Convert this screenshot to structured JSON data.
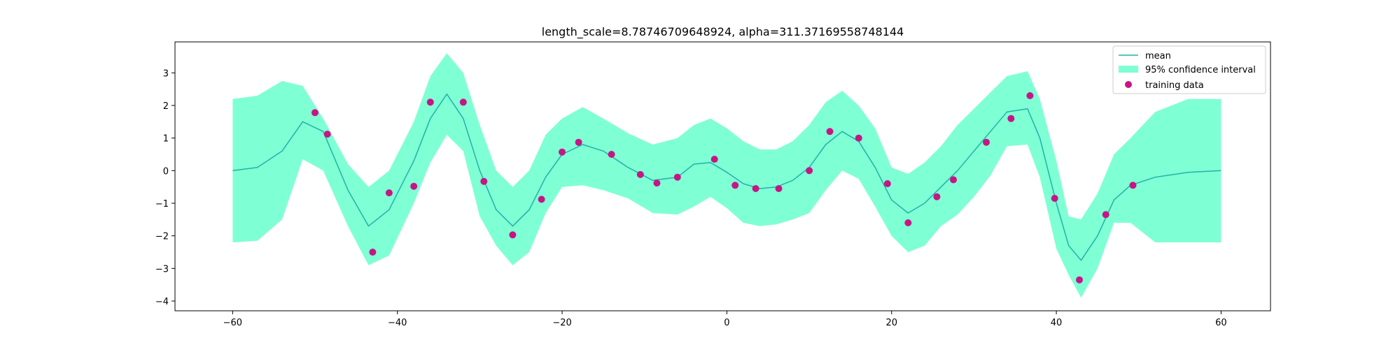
{
  "chart_data": {
    "type": "line",
    "title": "length_scale=8.78746709648924, alpha=311.37169558748144",
    "xlabel": "",
    "ylabel": "",
    "xlim": [
      -67,
      66
    ],
    "ylim": [
      -4.3,
      3.95
    ],
    "xticks": [
      -60,
      -40,
      -20,
      0,
      20,
      40,
      60
    ],
    "yticks": [
      -4,
      -3,
      -2,
      -1,
      0,
      1,
      2,
      3
    ],
    "grid": false,
    "legend_position": "top-right",
    "colors": {
      "mean": "#20b2aa",
      "confidence": "#7fffd4",
      "training": "#c71585"
    },
    "legend": {
      "mean": "mean",
      "confidence": "95% confidence interval",
      "training": "training data"
    },
    "mean": {
      "x": [
        -60,
        -57,
        -54,
        -51.5,
        -49,
        -46,
        -43.5,
        -41,
        -38,
        -36,
        -34,
        -32,
        -30,
        -28,
        -26,
        -24,
        -22,
        -20,
        -17.5,
        -15,
        -12,
        -9,
        -6,
        -4,
        -2,
        0,
        2,
        4,
        6,
        8,
        10,
        12,
        14,
        16,
        18,
        20,
        22,
        24,
        26,
        28,
        30,
        32,
        34,
        36.5,
        38,
        40,
        41.5,
        43,
        45,
        47,
        49,
        52,
        56,
        60
      ],
      "y": [
        0.0,
        0.1,
        0.6,
        1.5,
        1.2,
        -0.6,
        -1.7,
        -1.2,
        0.3,
        1.6,
        2.35,
        1.6,
        0.0,
        -1.2,
        -1.7,
        -1.2,
        -0.2,
        0.5,
        0.8,
        0.6,
        0.1,
        -0.3,
        -0.2,
        0.2,
        0.25,
        -0.05,
        -0.4,
        -0.55,
        -0.5,
        -0.3,
        0.1,
        0.8,
        1.2,
        0.9,
        0.1,
        -0.9,
        -1.3,
        -1.0,
        -0.5,
        0.0,
        0.6,
        1.2,
        1.8,
        1.9,
        1.0,
        -1.0,
        -2.3,
        -2.75,
        -2.0,
        -0.9,
        -0.45,
        -0.2,
        -0.05,
        0.0
      ]
    },
    "confidence_interval": {
      "upper": [
        2.2,
        2.3,
        2.75,
        2.6,
        1.6,
        0.2,
        -0.5,
        0.0,
        1.5,
        2.9,
        3.6,
        3.0,
        1.4,
        0.0,
        -0.5,
        0.0,
        1.1,
        1.6,
        1.95,
        1.6,
        1.15,
        0.8,
        1.0,
        1.4,
        1.6,
        1.3,
        0.9,
        0.65,
        0.65,
        0.9,
        1.4,
        2.1,
        2.45,
        2.0,
        1.3,
        0.1,
        -0.1,
        0.25,
        0.75,
        1.4,
        1.9,
        2.4,
        2.9,
        3.05,
        2.2,
        0.3,
        -1.4,
        -1.5,
        -0.7,
        0.5,
        1.0,
        1.8,
        2.2,
        2.2
      ],
      "lower": [
        -2.2,
        -2.15,
        -1.5,
        0.35,
        0.0,
        -1.7,
        -2.9,
        -2.6,
        -1.0,
        0.25,
        1.1,
        0.6,
        -1.4,
        -2.3,
        -2.9,
        -2.5,
        -1.3,
        -0.5,
        -0.45,
        -0.6,
        -0.85,
        -1.3,
        -1.35,
        -1.1,
        -0.8,
        -1.15,
        -1.6,
        -1.7,
        -1.65,
        -1.5,
        -1.3,
        -0.6,
        0.0,
        -0.25,
        -1.1,
        -2.0,
        -2.5,
        -2.3,
        -1.7,
        -1.35,
        -0.8,
        -0.15,
        0.75,
        0.8,
        -0.2,
        -2.4,
        -3.2,
        -3.9,
        -3.0,
        -1.6,
        -1.6,
        -2.2,
        -2.2,
        -2.2
      ]
    },
    "training_data": {
      "x": [
        -50,
        -48.5,
        -43,
        -41,
        -38,
        -36,
        -32,
        -29.5,
        -26,
        -22.5,
        -20,
        -18,
        -14,
        -10.5,
        -8.5,
        -6,
        -1.5,
        1,
        3.5,
        6.3,
        10,
        12.5,
        16,
        19.5,
        22,
        25.5,
        27.5,
        31.5,
        34.5,
        36.8,
        39.8,
        42.8,
        46,
        49.3
      ],
      "y": [
        1.78,
        1.12,
        -2.5,
        -0.68,
        -0.48,
        2.1,
        2.1,
        -0.33,
        -1.97,
        -0.88,
        0.57,
        0.87,
        0.5,
        -0.12,
        -0.38,
        -0.2,
        0.35,
        -0.45,
        -0.55,
        -0.55,
        0.0,
        1.2,
        1.0,
        -0.4,
        -1.6,
        -0.8,
        -0.28,
        0.87,
        1.6,
        2.3,
        -0.85,
        -3.35,
        -1.35,
        -0.45
      ]
    }
  }
}
